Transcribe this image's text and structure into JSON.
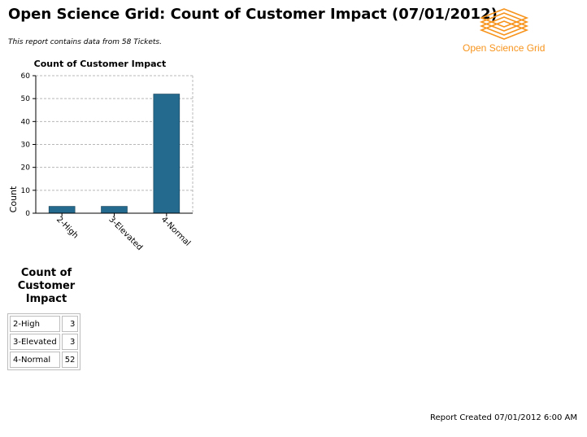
{
  "header": {
    "title": "Open Science Grid: Count of Customer Impact (07/01/2012)",
    "summary": "This report contains data from 58 Tickets."
  },
  "logo": {
    "text": "Open Science Grid",
    "color": "#f7941d"
  },
  "chart_data": {
    "type": "bar",
    "title": "Count of Customer Impact",
    "xlabel": "",
    "ylabel": "Count",
    "categories": [
      "2-High",
      "3-Elevated",
      "4-Normal"
    ],
    "values": [
      3,
      3,
      52
    ],
    "ylim": [
      0,
      60
    ],
    "yticks": [
      0,
      10,
      20,
      30,
      40,
      50,
      60
    ],
    "grid": true,
    "bar_color": "#236a8e"
  },
  "table": {
    "title_lines": [
      "Count of",
      "Customer",
      "Impact"
    ],
    "rows": [
      {
        "label": "2-High",
        "count": "3"
      },
      {
        "label": "3-Elevated",
        "count": "3"
      },
      {
        "label": "4-Normal",
        "count": "52"
      }
    ]
  },
  "footer": {
    "text": "Report Created 07/01/2012 6:00 AM"
  }
}
